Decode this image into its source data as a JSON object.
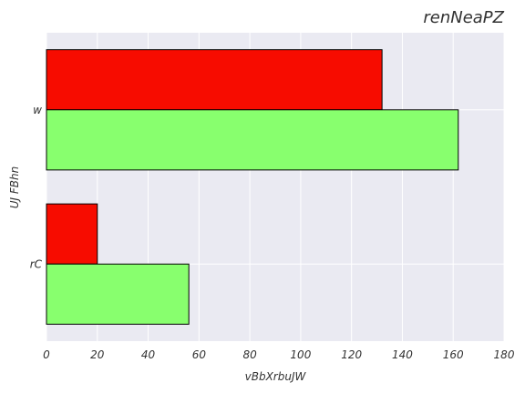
{
  "chart_data": {
    "type": "bar",
    "orientation": "horizontal",
    "title": "renNeaPZ",
    "xlabel": "vBbXrbuJW",
    "ylabel": "UJ FBhn",
    "categories": [
      "w",
      "rC"
    ],
    "series": [
      {
        "color": "#f70c00",
        "values": [
          132,
          20
        ]
      },
      {
        "color": "#88ff6e",
        "values": [
          162,
          56
        ]
      }
    ],
    "xlim": [
      0,
      180
    ],
    "xticks": [
      0,
      20,
      40,
      60,
      80,
      100,
      120,
      140,
      160,
      180
    ],
    "xtick_labels": [
      "0",
      "20",
      "40",
      "60",
      "80",
      "100",
      "120",
      "140",
      "160",
      "180"
    ],
    "grid": true,
    "legend": "none"
  }
}
